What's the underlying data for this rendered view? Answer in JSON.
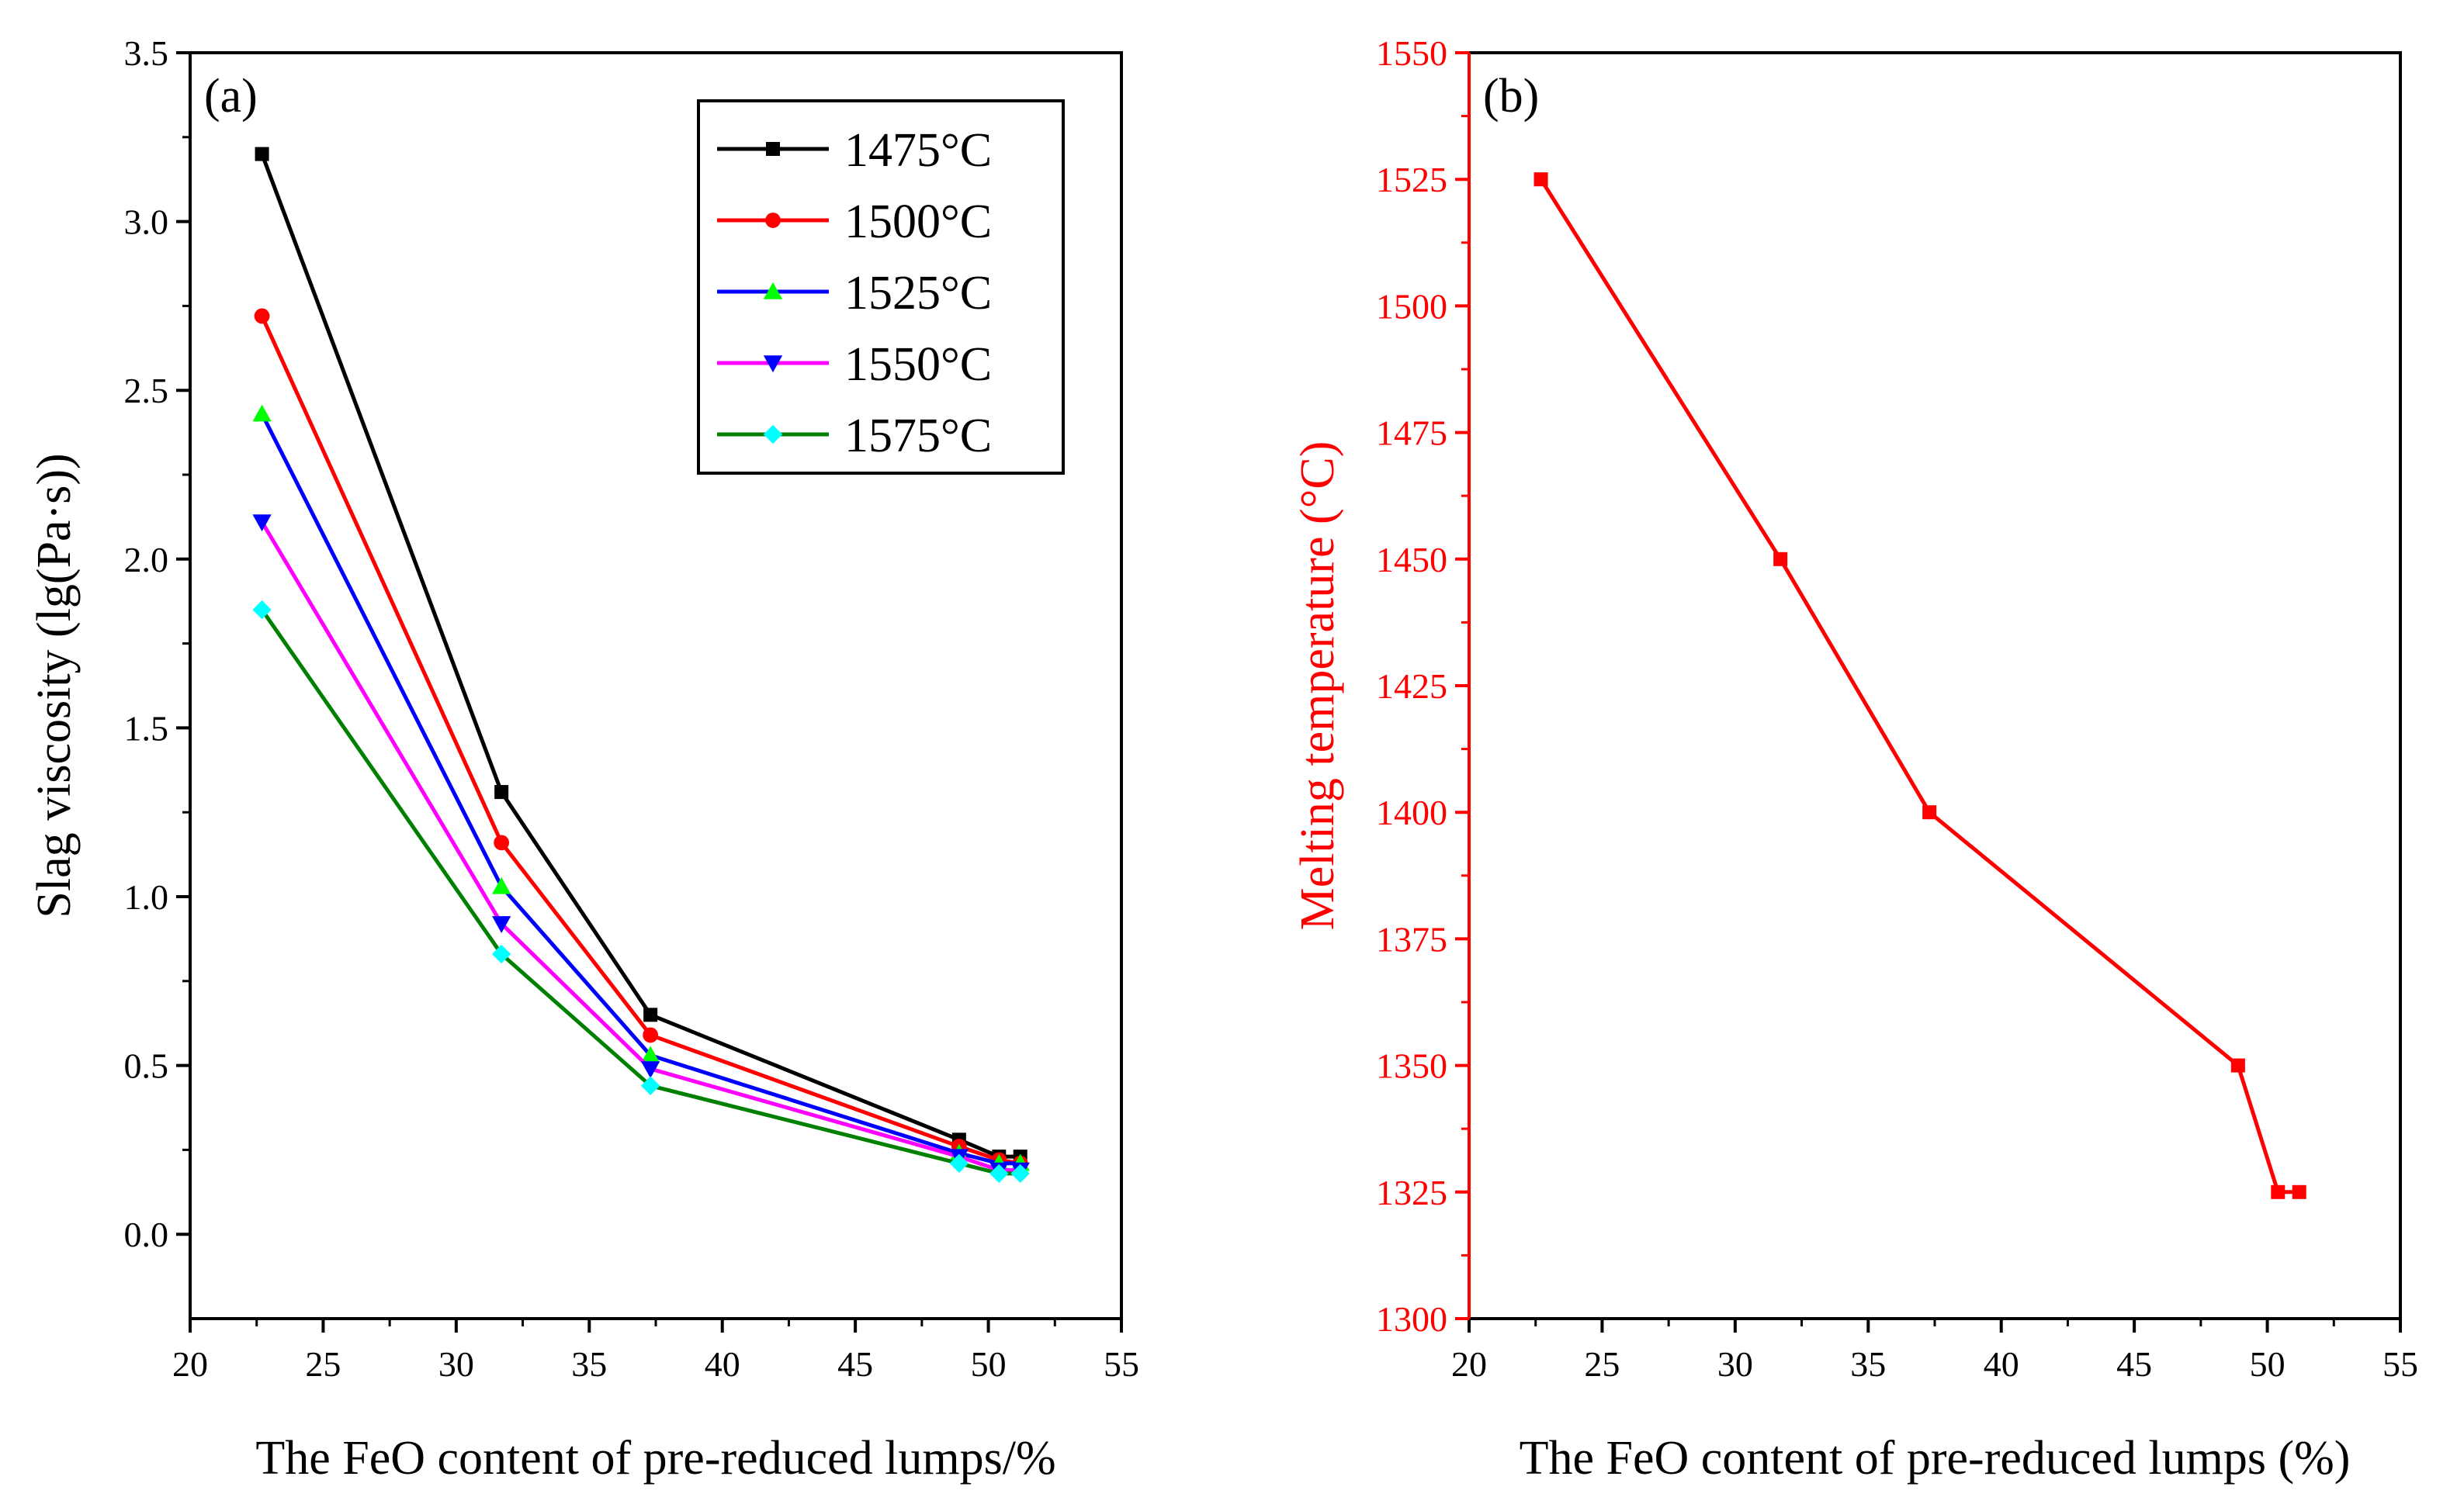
{
  "chart_data": [
    {
      "panel_label": "(a)",
      "type": "line",
      "title": "",
      "xlabel": "The FeO content of pre-reduced lumps/%",
      "ylabel": "Slag viscosity (lg(Pa·s))",
      "xlim": [
        20,
        55
      ],
      "ylim": [
        -0.25,
        3.5
      ],
      "xticks": [
        "20",
        "25",
        "30",
        "35",
        "40",
        "45",
        "50",
        "55"
      ],
      "yticks": [
        "0.0",
        "0.5",
        "1.0",
        "1.5",
        "2.0",
        "2.5",
        "3.0",
        "3.5"
      ],
      "x": [
        22.7,
        31.7,
        37.3,
        48.9,
        50.4,
        51.2
      ],
      "legend_position": "top-right",
      "series": [
        {
          "name": "1475°C",
          "color": "#000000",
          "marker": "square",
          "values": [
            3.2,
            1.31,
            0.65,
            0.28,
            0.23,
            0.23
          ]
        },
        {
          "name": "1500°C",
          "color": "#ff0000",
          "marker": "circle",
          "values": [
            2.72,
            1.16,
            0.59,
            0.26,
            0.22,
            0.21
          ]
        },
        {
          "name": "1525°C",
          "color": "#0000ff",
          "marker": "triangle-up",
          "markerColor": "#00ff00",
          "values": [
            2.43,
            1.03,
            0.53,
            0.24,
            0.21,
            0.21
          ]
        },
        {
          "name": "1550°C",
          "color": "#ff00ff",
          "marker": "triangle-down",
          "markerColor": "#0000ff",
          "values": [
            2.11,
            0.92,
            0.49,
            0.23,
            0.19,
            0.19
          ]
        },
        {
          "name": "1575°C",
          "color": "#008000",
          "marker": "diamond",
          "markerColor": "#00ffff",
          "values": [
            1.85,
            0.83,
            0.44,
            0.21,
            0.18,
            0.18
          ]
        }
      ]
    },
    {
      "panel_label": "(b)",
      "type": "line",
      "title": "",
      "xlabel": "The FeO content of pre-reduced lumps (%)",
      "ylabel": "Melting temperature (°C)",
      "xlim": [
        20,
        55
      ],
      "ylim": [
        1300,
        1550
      ],
      "xticks": [
        "20",
        "25",
        "30",
        "35",
        "40",
        "45",
        "50",
        "55"
      ],
      "yticks": [
        "1300",
        "1325",
        "1350",
        "1375",
        "1400",
        "1425",
        "1450",
        "1475",
        "1500",
        "1525",
        "1550"
      ],
      "axis_color": "#ff0000",
      "x": [
        22.7,
        31.7,
        37.3,
        48.9,
        50.4,
        51.2
      ],
      "series": [
        {
          "name": "Melting temperature",
          "color": "#ff0000",
          "marker": "square",
          "values": [
            1525,
            1450,
            1400,
            1350,
            1325,
            1325
          ]
        }
      ]
    }
  ]
}
